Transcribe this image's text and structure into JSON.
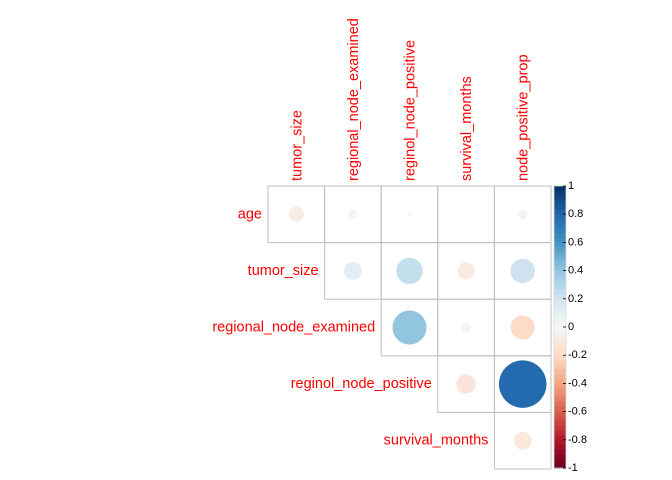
{
  "chart_data": {
    "type": "heatmap",
    "variant": "correlation-circle-upper",
    "rows": [
      "age",
      "tumor_size",
      "regional_node_examined",
      "reginol_node_positive",
      "survival_months"
    ],
    "columns": [
      "tumor_size",
      "regional_node_examined",
      "reginol_node_positive",
      "survival_months",
      "node_positive_prop"
    ],
    "values": [
      [
        -0.08,
        -0.03,
        -0.01,
        0.0,
        0.03
      ],
      [
        null,
        0.11,
        0.24,
        -0.1,
        0.21
      ],
      [
        null,
        null,
        0.4,
        -0.03,
        -0.2
      ],
      [
        null,
        null,
        null,
        -0.13,
        0.78
      ],
      [
        null,
        null,
        null,
        null,
        -0.11
      ]
    ],
    "colorbar": {
      "range": [
        -1,
        1
      ],
      "ticks": [
        "-1",
        "-0.8",
        "-0.6",
        "-0.4",
        "-0.2",
        "0",
        "0.2",
        "0.4",
        "0.6",
        "0.8",
        "1"
      ]
    },
    "colors": {
      "label": "#ff0000",
      "grid": "#bebebe",
      "neg_end": "#67001f",
      "pos_end": "#053061"
    }
  }
}
